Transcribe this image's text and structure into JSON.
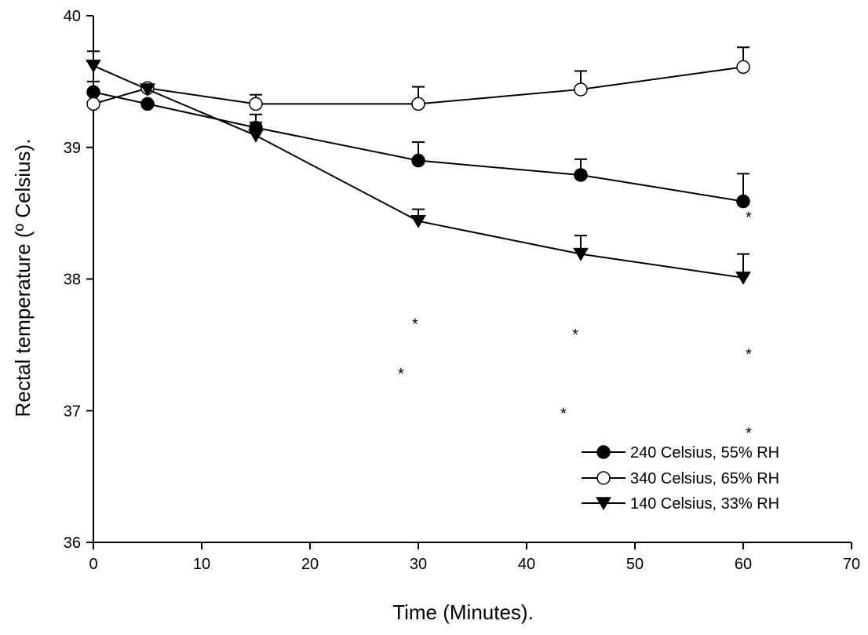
{
  "chart_data": {
    "type": "line",
    "title": "",
    "xlabel": "Time (Minutes).",
    "ylabel": "Rectal temperature (º Celsius).",
    "xlim": [
      0,
      70
    ],
    "ylim": [
      36,
      40
    ],
    "xticks": [
      "0",
      "10",
      "20",
      "30",
      "40",
      "50",
      "60",
      "70"
    ],
    "yticks": [
      "36",
      "37",
      "38",
      "39",
      "40"
    ],
    "grid": false,
    "legend_position": "bottom-right",
    "series": [
      {
        "name": "240 Celsius, 55% RH",
        "marker": "filled-circle",
        "color": "#000000",
        "x": [
          0,
          5,
          15,
          30,
          45,
          60
        ],
        "y": [
          39.42,
          39.33,
          39.15,
          38.9,
          38.79,
          38.59
        ],
        "error": [
          0.08,
          0.0,
          0.1,
          0.14,
          0.12,
          0.21
        ]
      },
      {
        "name": "340 Celsius, 65% RH",
        "marker": "open-circle",
        "color": "#000000",
        "x": [
          0,
          5,
          15,
          30,
          45,
          60
        ],
        "y": [
          39.33,
          39.45,
          39.33,
          39.33,
          39.44,
          39.61
        ],
        "error": [
          0.0,
          0.0,
          0.07,
          0.13,
          0.14,
          0.15
        ]
      },
      {
        "name": "140 Celsius, 33% RH",
        "marker": "filled-triangle-down",
        "color": "#000000",
        "x": [
          0,
          5,
          15,
          30,
          45,
          60
        ],
        "y": [
          39.62,
          39.44,
          39.09,
          38.44,
          38.19,
          38.01
        ],
        "error": [
          0.11,
          0.0,
          0.1,
          0.09,
          0.14,
          0.18
        ]
      }
    ],
    "annotations": [
      {
        "text": "*",
        "x": 60.5,
        "y": 38.5
      },
      {
        "text": "*",
        "x": 29.7,
        "y": 37.69
      },
      {
        "text": "*",
        "x": 28.4,
        "y": 37.31
      },
      {
        "text": "*",
        "x": 44.5,
        "y": 37.61
      },
      {
        "text": "*",
        "x": 43.4,
        "y": 37.01
      },
      {
        "text": "*",
        "x": 60.5,
        "y": 37.46
      },
      {
        "text": "*",
        "x": 60.5,
        "y": 36.86
      }
    ]
  }
}
